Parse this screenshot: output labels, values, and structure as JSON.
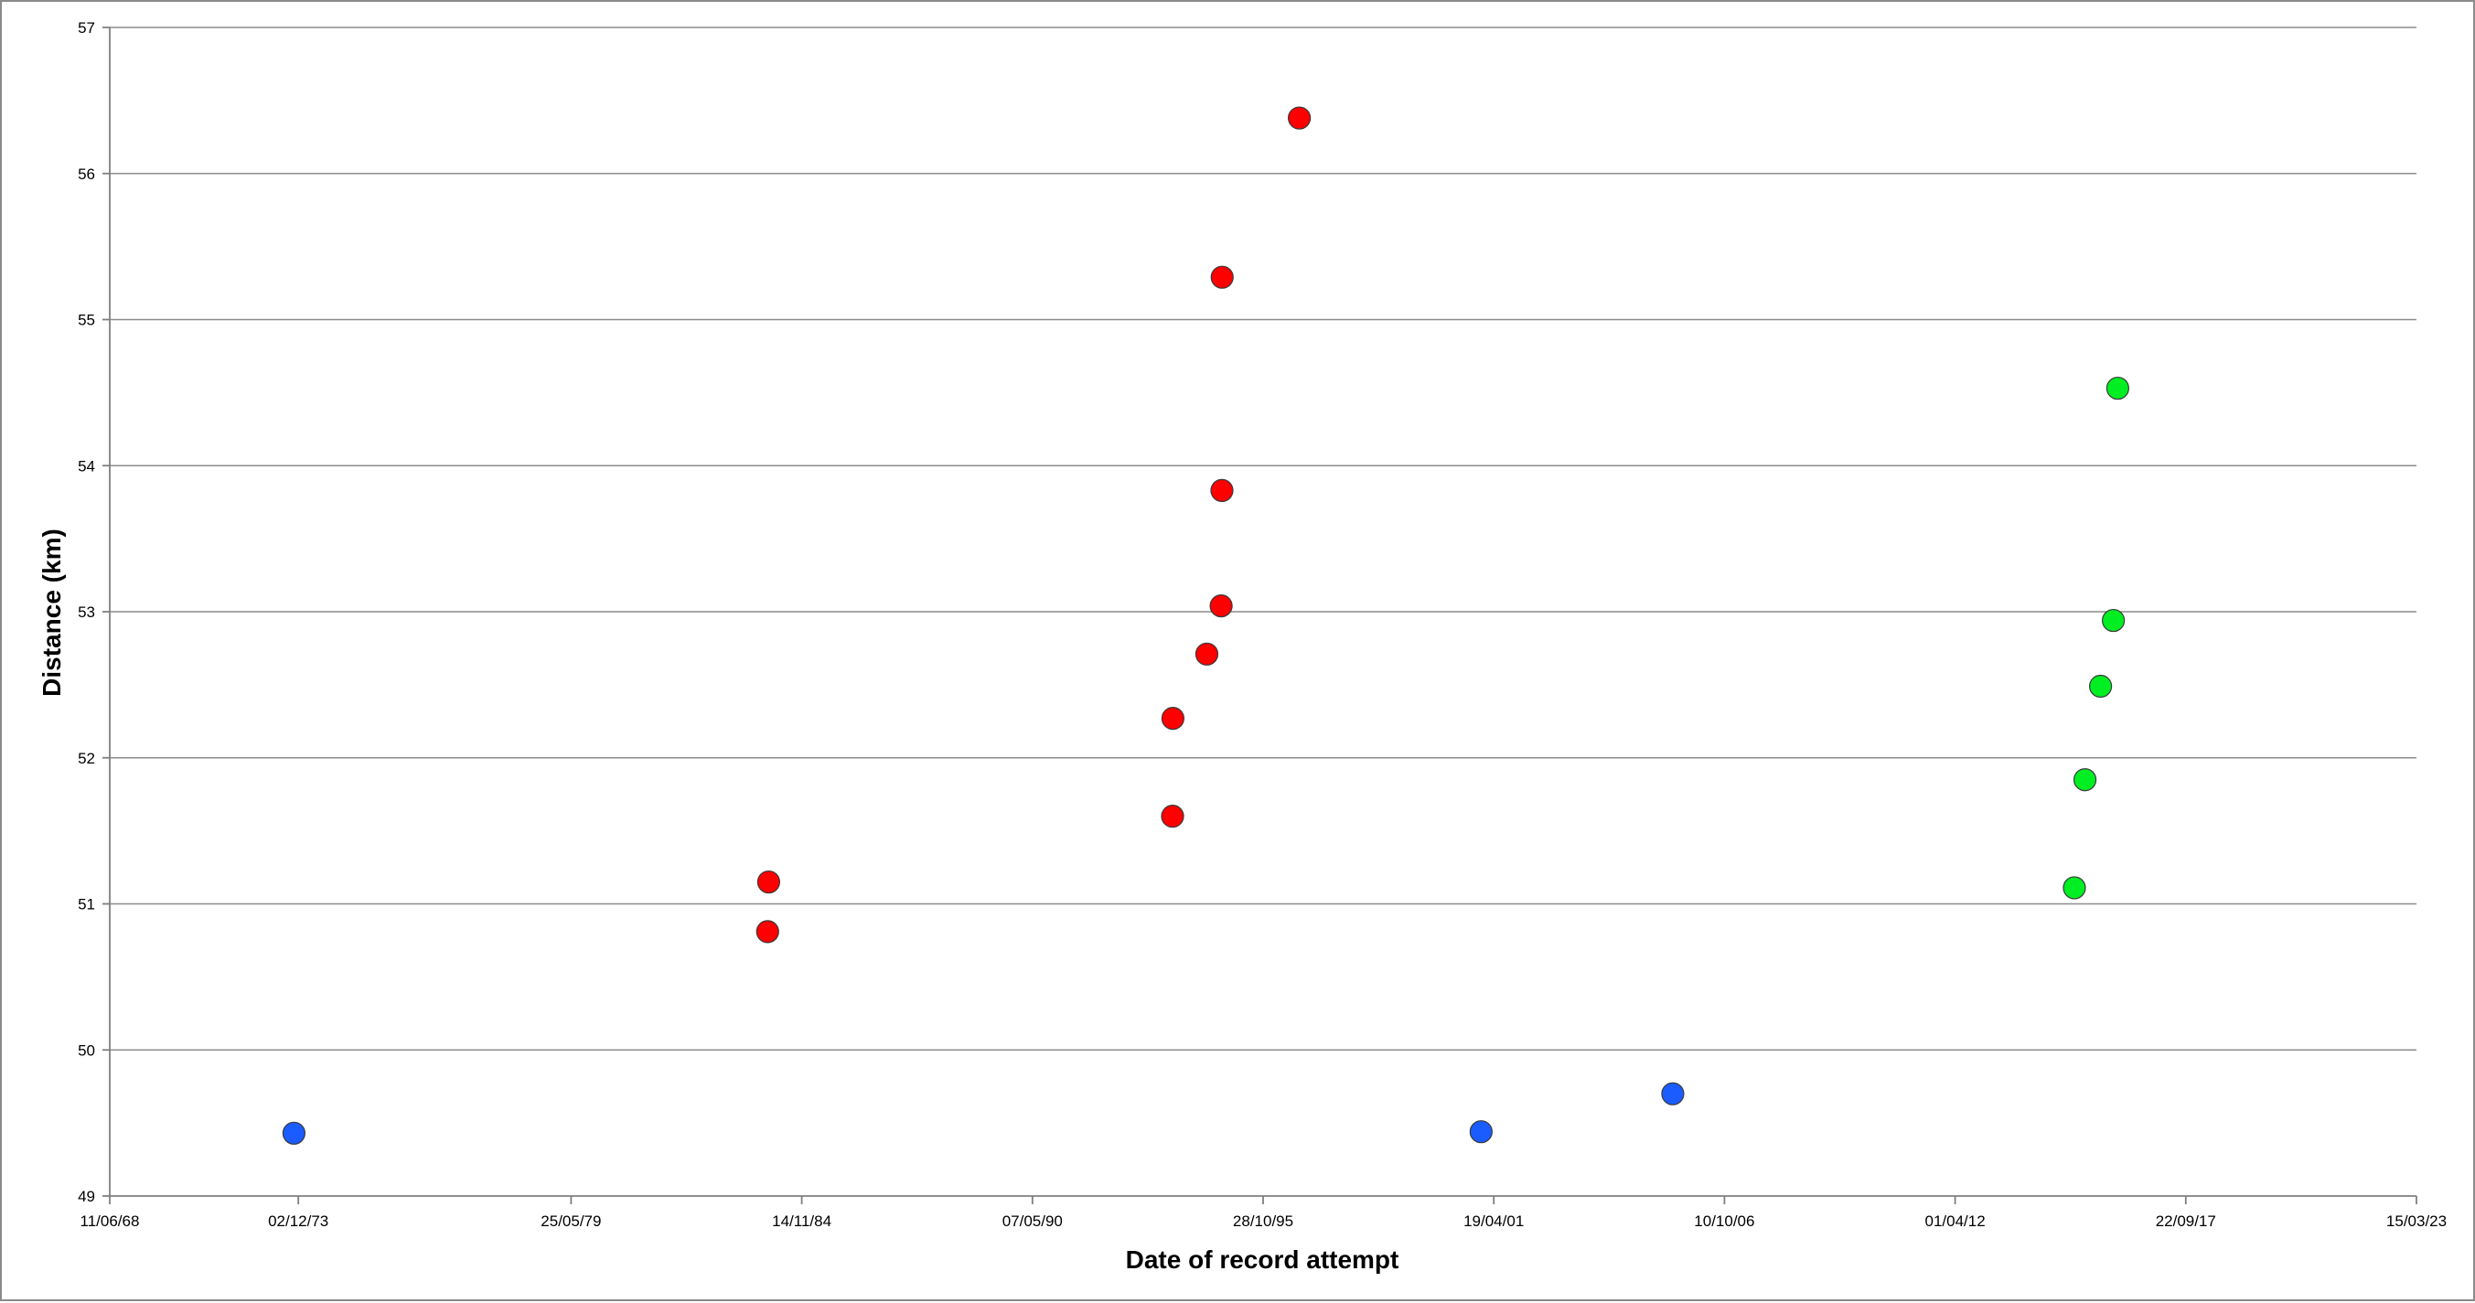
{
  "chart_data": {
    "type": "scatter",
    "title": "",
    "xlabel": "Date of record attempt",
    "ylabel": "Distance (km)",
    "x_axis_type": "date",
    "x_ticks": [
      "1968-06-11",
      "1972-12-02",
      "1979-05-25",
      "1984-11-14",
      "1990-05-07",
      "1995-10-28",
      "2001-04-19",
      "2006-10-10",
      "2012-04-01",
      "2017-09-22",
      "2023-03-15"
    ],
    "x_tick_labels": [
      "11/06/68",
      "02/12/73",
      "25/05/79",
      "14/11/84",
      "07/05/90",
      "28/10/95",
      "19/04/01",
      "10/10/06",
      "01/04/12",
      "22/09/17",
      "15/03/23"
    ],
    "xlim": [
      "1968-06-11",
      "2023-03-15"
    ],
    "ylim": [
      49,
      57
    ],
    "y_ticks": [
      49,
      50,
      51,
      52,
      53,
      54,
      55,
      56,
      57
    ],
    "y_tick_labels": [
      "49",
      "50",
      "51",
      "52",
      "53",
      "54",
      "55",
      "56",
      "57"
    ],
    "grid": {
      "horizontal": true,
      "vertical": false
    },
    "legend": "none",
    "series": [
      {
        "color": "#1a5cff",
        "points": [
          {
            "x": "1972-10-25",
            "y": 49.43
          },
          {
            "x": "2000-12-30",
            "y": 49.44
          },
          {
            "x": "2005-07-19",
            "y": 49.7
          }
        ]
      },
      {
        "color": "#ff0000",
        "points": [
          {
            "x": "1984-01-23",
            "y": 50.81
          },
          {
            "x": "1984-02-01",
            "y": 51.15
          },
          {
            "x": "1993-09-03",
            "y": 51.6
          },
          {
            "x": "1993-09-06",
            "y": 52.27
          },
          {
            "x": "1994-06-27",
            "y": 52.71
          },
          {
            "x": "1994-10-29",
            "y": 53.04
          },
          {
            "x": "1994-11-05",
            "y": 53.83
          },
          {
            "x": "1994-11-07",
            "y": 55.29
          },
          {
            "x": "1996-09-06",
            "y": 56.38
          }
        ]
      },
      {
        "color": "#00ee22",
        "points": [
          {
            "x": "2015-01-30",
            "y": 51.11
          },
          {
            "x": "2015-05-02",
            "y": 51.85
          },
          {
            "x": "2015-09-14",
            "y": 52.49
          },
          {
            "x": "2016-01-03",
            "y": 52.94
          },
          {
            "x": "2016-02-10",
            "y": 54.53
          }
        ]
      }
    ]
  }
}
